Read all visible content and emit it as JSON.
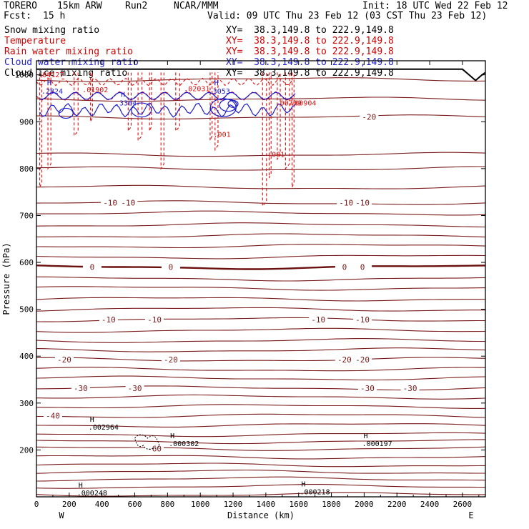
{
  "header": {
    "model": "TORERO",
    "resolution": "15km ARW",
    "run": "Run2",
    "org": "NCAR/MMM",
    "init": "Init: 18 UTC Wed 22 Feb 12",
    "fcst_label": "Fcst:",
    "fcst_value": "15 h",
    "valid": "Valid: 09 UTC Thu 23 Feb 12 (03 CST Thu 23 Feb 12)"
  },
  "fields": [
    {
      "name": "Snow mixing ratio",
      "xy": "XY=  38.3,149.8 to 222.9,149.8",
      "color": "#000000"
    },
    {
      "name": "Temperature",
      "xy": "XY=  38.3,149.8 to 222.9,149.8",
      "color": "#cc0000"
    },
    {
      "name": "Rain water mixing ratio",
      "xy": "XY=  38.3,149.8 to 222.9,149.8",
      "color": "#cc0000"
    },
    {
      "name": "Cloud water mixing ratio",
      "xy": "XY=  38.3,149.8 to 222.9,149.8",
      "color": "#2222cc"
    },
    {
      "name": "Cloud ice mixing ratio",
      "xy": "XY=  38.3,149.8 to 222.9,149.8",
      "color": "#000000"
    }
  ],
  "chart_data": {
    "type": "line",
    "xlabel": "Distance (km)",
    "ylabel": "Pressure (hPa)",
    "xlim": [
      0,
      2740
    ],
    "ylim": [
      1030,
      100
    ],
    "x_ticks": [
      0,
      200,
      400,
      600,
      800,
      1000,
      1200,
      1400,
      1600,
      1800,
      2000,
      2200,
      2400,
      2600
    ],
    "y_ticks": [
      200,
      300,
      400,
      500,
      600,
      700,
      800,
      900,
      1000
    ],
    "left_end_label": "W",
    "right_end_label": "E",
    "colors": {
      "temperature": "#7a1a1a",
      "freezing": "#6b0f0f",
      "rain": "#dd1111",
      "cloud_water": "#1a1acc",
      "ice": "#000000",
      "ground": "#000000"
    },
    "isotherms": [
      {
        "p": 105
      },
      {
        "p": 122
      },
      {
        "p": 138
      },
      {
        "p": 153
      },
      {
        "p": 168
      },
      {
        "p": 185
      },
      {
        "p": 203,
        "label": "-60",
        "label_x": [
          720
        ]
      },
      {
        "p": 218
      },
      {
        "p": 233
      },
      {
        "p": 253
      },
      {
        "p": 273,
        "label": "-40",
        "label_x": [
          100
        ]
      },
      {
        "p": 293
      },
      {
        "p": 313
      },
      {
        "p": 332,
        "label": "-30",
        "label_x": [
          270,
          600,
          2020,
          2280
        ]
      },
      {
        "p": 353
      },
      {
        "p": 372
      },
      {
        "p": 393,
        "label": "-20",
        "label_x": [
          170,
          820,
          1880,
          1990
        ]
      },
      {
        "p": 413
      },
      {
        "p": 433
      },
      {
        "p": 455
      },
      {
        "p": 478,
        "label": "-10",
        "label_x": [
          440,
          720,
          1720,
          1990
        ]
      },
      {
        "p": 500
      },
      {
        "p": 522
      },
      {
        "p": 545
      },
      {
        "p": 565
      },
      {
        "p": 590,
        "label": "0",
        "label_x": [
          340,
          820,
          1880,
          1990
        ],
        "freezing": true
      },
      {
        "p": 612
      },
      {
        "p": 635
      },
      {
        "p": 657
      },
      {
        "p": 680
      },
      {
        "p": 705
      },
      {
        "p": 727,
        "label": "-10",
        "label_x": [
          450,
          560,
          1890,
          1990
        ]
      },
      {
        "p": 760
      },
      {
        "p": 800
      },
      {
        "p": 830
      },
      {
        "p": 910,
        "label": "-20",
        "label_x": [
          2030
        ]
      },
      {
        "p": 948
      },
      {
        "p": 990
      }
    ],
    "maxima": [
      {
        "x": 370,
        "p": 248,
        "label": ".002964"
      },
      {
        "x": 860,
        "p": 213,
        "label": ".000302"
      },
      {
        "x": 2040,
        "p": 213,
        "label": ".000197"
      },
      {
        "x": 1660,
        "p": 110,
        "label": ".000218"
      },
      {
        "x": 300,
        "p": 108,
        "label": ".000248"
      }
    ],
    "rain_labels": [
      {
        "x": 1410,
        "p": 825,
        "label": ".001"
      },
      {
        "x": 1080,
        "p": 868,
        "label": ".001"
      },
      {
        "x": 1460,
        "p": 935,
        "label": ".00709"
      },
      {
        "x": 1550,
        "p": 935,
        "label": ".00904"
      },
      {
        "x": 10,
        "p": 995,
        "label": ".04127"
      },
      {
        "x": 900,
        "p": 965,
        "label": ".02031"
      },
      {
        "x": 280,
        "p": 963,
        "label": ".01902"
      }
    ],
    "cloud_labels": [
      {
        "x": 30,
        "p": 960,
        "label": ".2824"
      },
      {
        "x": 480,
        "p": 935,
        "label": ".3304"
      },
      {
        "x": 1050,
        "p": 960,
        "label": ".3053"
      }
    ],
    "ground": [
      {
        "x": 0,
        "p": 1012
      },
      {
        "x": 2600,
        "p": 1012
      },
      {
        "x": 2640,
        "p": 1000
      },
      {
        "x": 2680,
        "p": 988
      },
      {
        "x": 2720,
        "p": 1000
      },
      {
        "x": 2740,
        "p": 1005
      }
    ]
  }
}
